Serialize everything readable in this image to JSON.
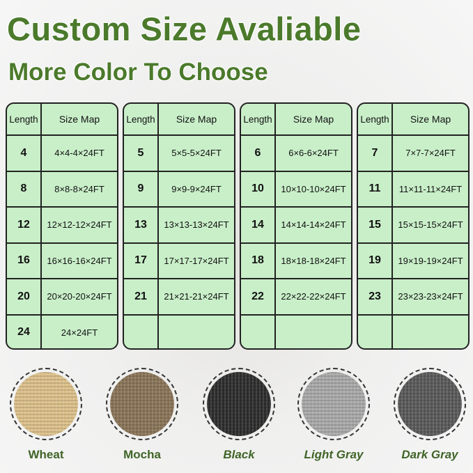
{
  "title": "Custom Size Avaliable",
  "subtitle": "More Color To Choose",
  "header": {
    "length": "Length",
    "size_map": "Size Map"
  },
  "tables": [
    {
      "rows": [
        [
          "4",
          "4×4-4×24FT"
        ],
        [
          "8",
          "8×8-8×24FT"
        ],
        [
          "12",
          "12×12-12×24FT"
        ],
        [
          "16",
          "16×16-16×24FT"
        ],
        [
          "20",
          "20×20-20×24FT"
        ],
        [
          "24",
          "24×24FT"
        ]
      ]
    },
    {
      "rows": [
        [
          "5",
          "5×5-5×24FT"
        ],
        [
          "9",
          "9×9-9×24FT"
        ],
        [
          "13",
          "13×13-13×24FT"
        ],
        [
          "17",
          "17×17-17×24FT"
        ],
        [
          "21",
          "21×21-21×24FT"
        ],
        [
          "",
          ""
        ]
      ]
    },
    {
      "rows": [
        [
          "6",
          "6×6-6×24FT"
        ],
        [
          "10",
          "10×10-10×24FT"
        ],
        [
          "14",
          "14×14-14×24FT"
        ],
        [
          "18",
          "18×18-18×24FT"
        ],
        [
          "22",
          "22×22-22×24FT"
        ],
        [
          "",
          ""
        ]
      ]
    },
    {
      "rows": [
        [
          "7",
          "7×7-7×24FT"
        ],
        [
          "11",
          "11×11-11×24FT"
        ],
        [
          "15",
          "15×15-15×24FT"
        ],
        [
          "19",
          "19×19-19×24FT"
        ],
        [
          "23",
          "23×23-23×24FT"
        ],
        [
          "",
          ""
        ]
      ]
    }
  ],
  "colors": [
    {
      "name": "Wheat",
      "swatch": "#dcc08a"
    },
    {
      "name": "Mocha",
      "swatch": "#8a7458"
    },
    {
      "name": "Black",
      "swatch": "#2e2e2e"
    },
    {
      "name": "Light Gray",
      "swatch": "#a9a9a9"
    },
    {
      "name": "Dark Gray",
      "swatch": "#5a5a5a"
    }
  ],
  "accent": "#4b7a2b",
  "table_fill": "#c9efc9"
}
